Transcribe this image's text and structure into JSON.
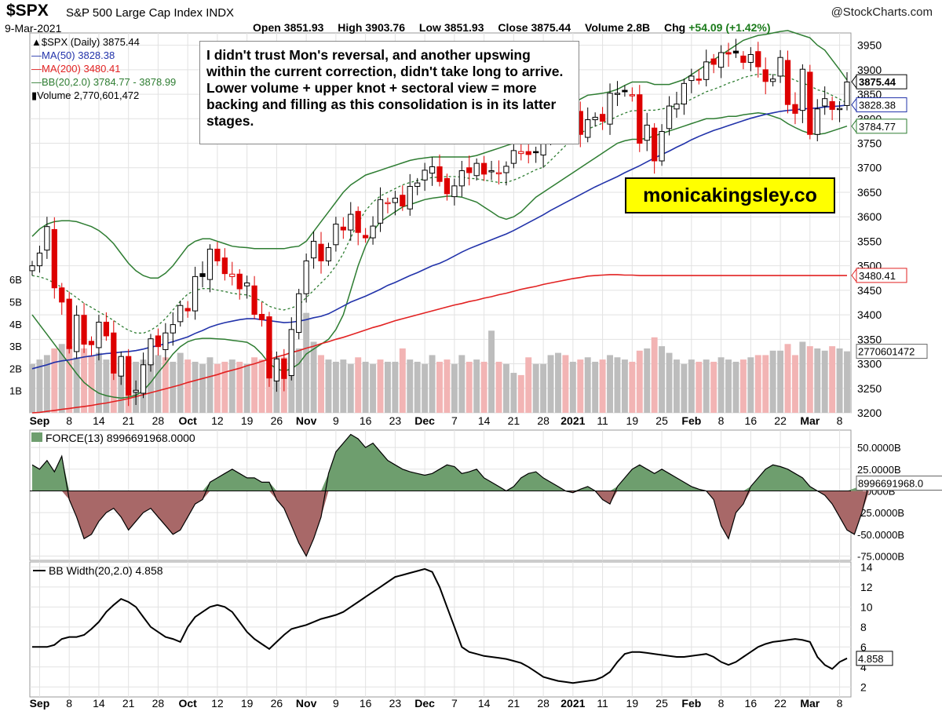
{
  "header": {
    "symbol": "$SPX",
    "index_name": "S&P 500 Large Cap Index",
    "exchange": "INDX",
    "brand": "@StockCharts.com",
    "date": "9-Mar-2021",
    "open_label": "Open",
    "open": "3851.93",
    "high_label": "High",
    "high": "3903.76",
    "low_label": "Low",
    "low": "3851.93",
    "close_label": "Close",
    "close": "3875.44",
    "volume_label": "Volume",
    "volume": "2.8B",
    "chg_label": "Chg",
    "chg": "+54.09 (+1.42%)"
  },
  "legend": {
    "series": "$SPX (Daily) 3875.44",
    "ma50": "MA(50) 3828.38",
    "ma200": "MA(200) 3480.41",
    "bb": "BB(20,2.0) 3784.77 - 3878.99",
    "volume": "Volume 2,770,601,472"
  },
  "annotation": "I didn't trust Mon's reversal, and another upswing within the current correction, didn't take long to arrive. Lower volume + upper knot + sectoral view = more backing and filling as this consolidation is in its latter stages.",
  "website": "monicakingsley.co",
  "colors": {
    "up_candle": "#000000",
    "down_candle": "#dd0000",
    "ma50": "#2233aa",
    "ma200": "#e22222",
    "bb": "#2e7d32",
    "force_pos": "#6e9e6e",
    "force_neg": "#a86868",
    "vol_up": "#bdbdbd",
    "vol_down": "#f2b4b4"
  },
  "chart_data": [
    {
      "type": "candlestick",
      "title": "$SPX (Daily) 3875.44",
      "ylim": [
        3200,
        3975
      ],
      "y_ticks": [
        "3200",
        "3250",
        "3300",
        "3350",
        "3400",
        "3450",
        "3500",
        "3550",
        "3600",
        "3650",
        "3700",
        "3750",
        "3800",
        "3850",
        "3900",
        "3950"
      ],
      "x_tick_labels": [
        "Sep",
        "8",
        "14",
        "21",
        "28",
        "Oct",
        "12",
        "19",
        "26",
        "Nov",
        "9",
        "16",
        "23",
        "Dec",
        "7",
        "14",
        "21",
        "28",
        "2021",
        "11",
        "19",
        "25",
        "Feb",
        "8",
        "16",
        "22",
        "Mar",
        "8"
      ],
      "bold_tick_labels": [
        "Sep",
        "Oct",
        "Nov",
        "Dec",
        "2021",
        "Feb",
        "Mar"
      ],
      "close": [
        3500,
        3526,
        3580,
        3455,
        3426,
        3331,
        3399,
        3340,
        3339,
        3385,
        3357,
        3281,
        3315,
        3236,
        3246,
        3298,
        3351,
        3335,
        3363,
        3380,
        3419,
        3408,
        3478,
        3478,
        3534,
        3510,
        3484,
        3483,
        3453,
        3465,
        3401,
        3390,
        3271,
        3310,
        3270,
        3370,
        3443,
        3510,
        3550,
        3510,
        3537,
        3585,
        3573,
        3605,
        3568,
        3557,
        3581,
        3635,
        3629,
        3638,
        3622,
        3662,
        3669,
        3695,
        3702,
        3672,
        3647,
        3663,
        3694,
        3690,
        3709,
        3687,
        3694,
        3690,
        3703,
        3735,
        3733,
        3727,
        3732,
        3756,
        3803,
        3825,
        3801,
        3809,
        3768,
        3798,
        3803,
        3795,
        3852,
        3852,
        3855,
        3849,
        3750,
        3787,
        3714,
        3774,
        3826,
        3830,
        3872,
        3887,
        3880,
        3916,
        3911,
        3935,
        3932,
        3934,
        3915,
        3931,
        3906,
        3876,
        3881,
        3925,
        3829,
        3811,
        3901,
        3768,
        3820,
        3841,
        3819,
        3821,
        3875
      ],
      "ma50": [
        3290,
        3294,
        3298,
        3303,
        3306,
        3308,
        3311,
        3314,
        3316,
        3319,
        3321,
        3322,
        3324,
        3325,
        3327,
        3330,
        3334,
        3337,
        3341,
        3345,
        3350,
        3355,
        3362,
        3368,
        3375,
        3380,
        3384,
        3387,
        3390,
        3392,
        3392,
        3390,
        3388,
        3386,
        3384,
        3385,
        3387,
        3390,
        3394,
        3397,
        3402,
        3410,
        3418,
        3426,
        3432,
        3438,
        3445,
        3452,
        3460,
        3466,
        3473,
        3480,
        3486,
        3493,
        3500,
        3505,
        3512,
        3520,
        3528,
        3535,
        3541,
        3547,
        3553,
        3559,
        3565,
        3572,
        3580,
        3588,
        3596,
        3604,
        3613,
        3621,
        3629,
        3637,
        3645,
        3653,
        3661,
        3668,
        3675,
        3682,
        3690,
        3697,
        3704,
        3712,
        3720,
        3727,
        3734,
        3742,
        3749,
        3757,
        3764,
        3770,
        3776,
        3781,
        3786,
        3791,
        3796,
        3801,
        3805,
        3809,
        3812,
        3815,
        3817,
        3818,
        3820,
        3821,
        3822,
        3824,
        3825,
        3826,
        3828
      ],
      "ma200": [
        3200,
        3201,
        3203,
        3205,
        3207,
        3209,
        3211,
        3213,
        3215,
        3218,
        3220,
        3223,
        3226,
        3229,
        3233,
        3237,
        3241,
        3245,
        3249,
        3253,
        3257,
        3262,
        3266,
        3270,
        3274,
        3278,
        3283,
        3287,
        3291,
        3296,
        3300,
        3305,
        3309,
        3314,
        3318,
        3323,
        3327,
        3332,
        3336,
        3341,
        3345,
        3350,
        3354,
        3359,
        3364,
        3369,
        3374,
        3378,
        3383,
        3388,
        3392,
        3396,
        3400,
        3404,
        3408,
        3412,
        3416,
        3420,
        3423,
        3427,
        3430,
        3434,
        3437,
        3441,
        3444,
        3448,
        3452,
        3455,
        3458,
        3462,
        3465,
        3468,
        3471,
        3474,
        3476,
        3479,
        3480,
        3481,
        3482,
        3482,
        3481,
        3481,
        3480,
        3480,
        3480,
        3480,
        3480,
        3480,
        3480,
        3480,
        3480,
        3480,
        3480,
        3480,
        3480,
        3480,
        3480,
        3480,
        3480,
        3480,
        3480,
        3480,
        3480,
        3480,
        3480,
        3480,
        3480,
        3480,
        3480,
        3480,
        3480
      ],
      "bb_upper": [
        3560,
        3575,
        3585,
        3590,
        3592,
        3592,
        3590,
        3585,
        3580,
        3572,
        3560,
        3545,
        3525,
        3505,
        3490,
        3480,
        3475,
        3475,
        3485,
        3500,
        3520,
        3540,
        3550,
        3555,
        3555,
        3550,
        3545,
        3540,
        3538,
        3537,
        3535,
        3535,
        3535,
        3535,
        3535,
        3538,
        3540,
        3550,
        3570,
        3590,
        3610,
        3630,
        3650,
        3665,
        3675,
        3685,
        3690,
        3695,
        3700,
        3705,
        3710,
        3715,
        3718,
        3720,
        3722,
        3722,
        3722,
        3722,
        3722,
        3722,
        3725,
        3730,
        3735,
        3740,
        3745,
        3750,
        3752,
        3752,
        3752,
        3752,
        3770,
        3790,
        3810,
        3830,
        3840,
        3848,
        3850,
        3852,
        3855,
        3860,
        3868,
        3875,
        3875,
        3875,
        3870,
        3870,
        3870,
        3875,
        3880,
        3890,
        3900,
        3910,
        3920,
        3930,
        3940,
        3950,
        3960,
        3965,
        3970,
        3972,
        3975,
        3978,
        3980,
        3975,
        3970,
        3965,
        3950,
        3940,
        3920,
        3900,
        3879
      ],
      "bb_lower": [
        3400,
        3380,
        3360,
        3340,
        3320,
        3300,
        3280,
        3262,
        3250,
        3240,
        3235,
        3232,
        3230,
        3232,
        3236,
        3245,
        3262,
        3282,
        3300,
        3320,
        3335,
        3345,
        3350,
        3352,
        3352,
        3351,
        3350,
        3348,
        3346,
        3344,
        3335,
        3320,
        3300,
        3290,
        3285,
        3290,
        3300,
        3320,
        3330,
        3340,
        3350,
        3370,
        3400,
        3450,
        3500,
        3540,
        3570,
        3590,
        3600,
        3610,
        3620,
        3625,
        3630,
        3635,
        3638,
        3640,
        3642,
        3642,
        3640,
        3635,
        3630,
        3620,
        3610,
        3600,
        3595,
        3600,
        3610,
        3625,
        3640,
        3650,
        3660,
        3670,
        3680,
        3690,
        3700,
        3710,
        3720,
        3730,
        3740,
        3750,
        3755,
        3758,
        3758,
        3760,
        3765,
        3770,
        3775,
        3780,
        3785,
        3790,
        3795,
        3800,
        3800,
        3802,
        3805,
        3805,
        3808,
        3810,
        3812,
        3810,
        3805,
        3800,
        3790,
        3782,
        3775,
        3770,
        3768,
        3770,
        3775,
        3780,
        3785
      ],
      "annotations": [
        "3875.44",
        "3828.38",
        "3784.77",
        "3480.41"
      ]
    },
    {
      "type": "bar",
      "title": "Volume 2,770,601,472",
      "unit": "billion shares",
      "ylim": [
        0,
        6.5
      ],
      "y_ticks": [
        "1B",
        "2B",
        "3B",
        "4B",
        "5B",
        "6B"
      ],
      "values": [
        2.2,
        2.4,
        2.6,
        2.9,
        3.1,
        3.0,
        2.5,
        2.9,
        2.6,
        2.7,
        2.4,
        2.8,
        2.5,
        2.4,
        2.3,
        2.4,
        2.3,
        2.6,
        2.5,
        2.3,
        2.7,
        2.4,
        2.3,
        2.2,
        2.5,
        2.2,
        2.3,
        2.4,
        2.3,
        2.2,
        2.5,
        2.4,
        2.8,
        2.5,
        2.5,
        2.6,
        2.9,
        4.5,
        3.2,
        2.6,
        2.4,
        2.3,
        2.4,
        2.2,
        2.5,
        2.3,
        2.2,
        2.4,
        2.3,
        2.3,
        2.9,
        2.4,
        2.3,
        2.2,
        2.6,
        2.3,
        2.4,
        2.2,
        2.6,
        2.3,
        2.4,
        2.3,
        3.7,
        2.3,
        2.2,
        1.8,
        1.7,
        2.5,
        2.2,
        2.2,
        2.6,
        2.7,
        2.6,
        2.3,
        2.4,
        2.5,
        2.3,
        2.4,
        2.6,
        2.5,
        2.4,
        2.3,
        2.8,
        2.9,
        3.4,
        3.0,
        2.7,
        2.4,
        2.2,
        2.4,
        2.3,
        2.4,
        2.3,
        2.5,
        2.4,
        2.3,
        2.4,
        2.5,
        2.6,
        2.6,
        2.8,
        2.8,
        3.1,
        2.6,
        3.2,
        3.0,
        2.9,
        2.8,
        3.0,
        2.9,
        2.77
      ],
      "down_days": [
        3,
        5,
        7,
        8,
        11,
        13,
        18,
        21,
        25,
        26,
        28,
        30,
        31,
        32,
        34,
        39,
        44,
        47,
        50,
        55,
        56,
        59,
        61,
        63,
        66,
        67,
        72,
        74,
        77,
        81,
        82,
        84,
        90,
        92,
        96,
        98,
        99,
        102,
        103,
        105,
        108
      ],
      "annotations": [
        "2770601472"
      ]
    },
    {
      "type": "area",
      "title": "FORCE(13) 8996691968.0000",
      "unit": "billion",
      "ylim": [
        -80,
        70
      ],
      "y_ticks": [
        "50.0000B",
        "25.0000B",
        "0.0000B",
        "-25.0000B",
        "-50.0000B",
        "-75.0000B"
      ],
      "values": [
        30,
        25,
        35,
        22,
        40,
        -10,
        -30,
        -55,
        -50,
        -35,
        -25,
        -20,
        -30,
        -45,
        -35,
        -25,
        -20,
        -30,
        -40,
        -50,
        -45,
        -30,
        -15,
        -10,
        10,
        15,
        20,
        25,
        20,
        15,
        15,
        10,
        10,
        -10,
        -20,
        -40,
        -60,
        -75,
        -55,
        -30,
        20,
        45,
        55,
        65,
        60,
        50,
        55,
        45,
        35,
        30,
        25,
        22,
        20,
        18,
        20,
        25,
        30,
        28,
        20,
        22,
        25,
        15,
        10,
        5,
        0,
        5,
        15,
        20,
        22,
        15,
        10,
        5,
        0,
        -2,
        2,
        5,
        0,
        -10,
        -15,
        5,
        15,
        25,
        30,
        25,
        20,
        25,
        20,
        15,
        10,
        5,
        2,
        0,
        -10,
        -40,
        -55,
        -25,
        -15,
        5,
        15,
        25,
        30,
        28,
        25,
        20,
        15,
        5,
        0,
        -5,
        -15,
        -30,
        -45,
        -50,
        -25,
        9
      ],
      "annotations": [
        "8996691968.0"
      ]
    },
    {
      "type": "line",
      "title": "BB Width(20,2.0) 4.858",
      "ylim": [
        1,
        14.5
      ],
      "y_ticks": [
        "2",
        "4",
        "6",
        "8",
        "10",
        "12",
        "14"
      ],
      "values": [
        6,
        6,
        6,
        6.2,
        6.8,
        7,
        7,
        7.2,
        7.8,
        8.5,
        9.5,
        10.2,
        10.8,
        10.5,
        10,
        9,
        8,
        7.5,
        7,
        6.8,
        6.5,
        8,
        9,
        9.5,
        10,
        10.2,
        10,
        9.5,
        8.5,
        7.5,
        6.8,
        6.3,
        5.8,
        6.5,
        7.2,
        7.8,
        8,
        8.2,
        8.5,
        8.8,
        9,
        9.2,
        9.5,
        10,
        10.5,
        11,
        11.5,
        12,
        12.5,
        13,
        13.2,
        13.4,
        13.6,
        13.8,
        13.5,
        12,
        10,
        8,
        6,
        5.5,
        5.3,
        5.1,
        5,
        4.9,
        4.8,
        4.6,
        4.4,
        4,
        3.5,
        3,
        2.8,
        2.6,
        2.5,
        2.4,
        2.5,
        2.6,
        2.7,
        3,
        3.5,
        4.5,
        5.3,
        5.5,
        5.5,
        5.4,
        5.3,
        5.2,
        5.1,
        5,
        5,
        5.1,
        5.2,
        5.3,
        5,
        4.5,
        4.2,
        4.5,
        5,
        5.5,
        6,
        6.3,
        6.5,
        6.6,
        6.7,
        6.8,
        6.7,
        6.5,
        5,
        4.2,
        3.8,
        4.5,
        4.86
      ],
      "annotations": [
        "4.858"
      ]
    }
  ]
}
